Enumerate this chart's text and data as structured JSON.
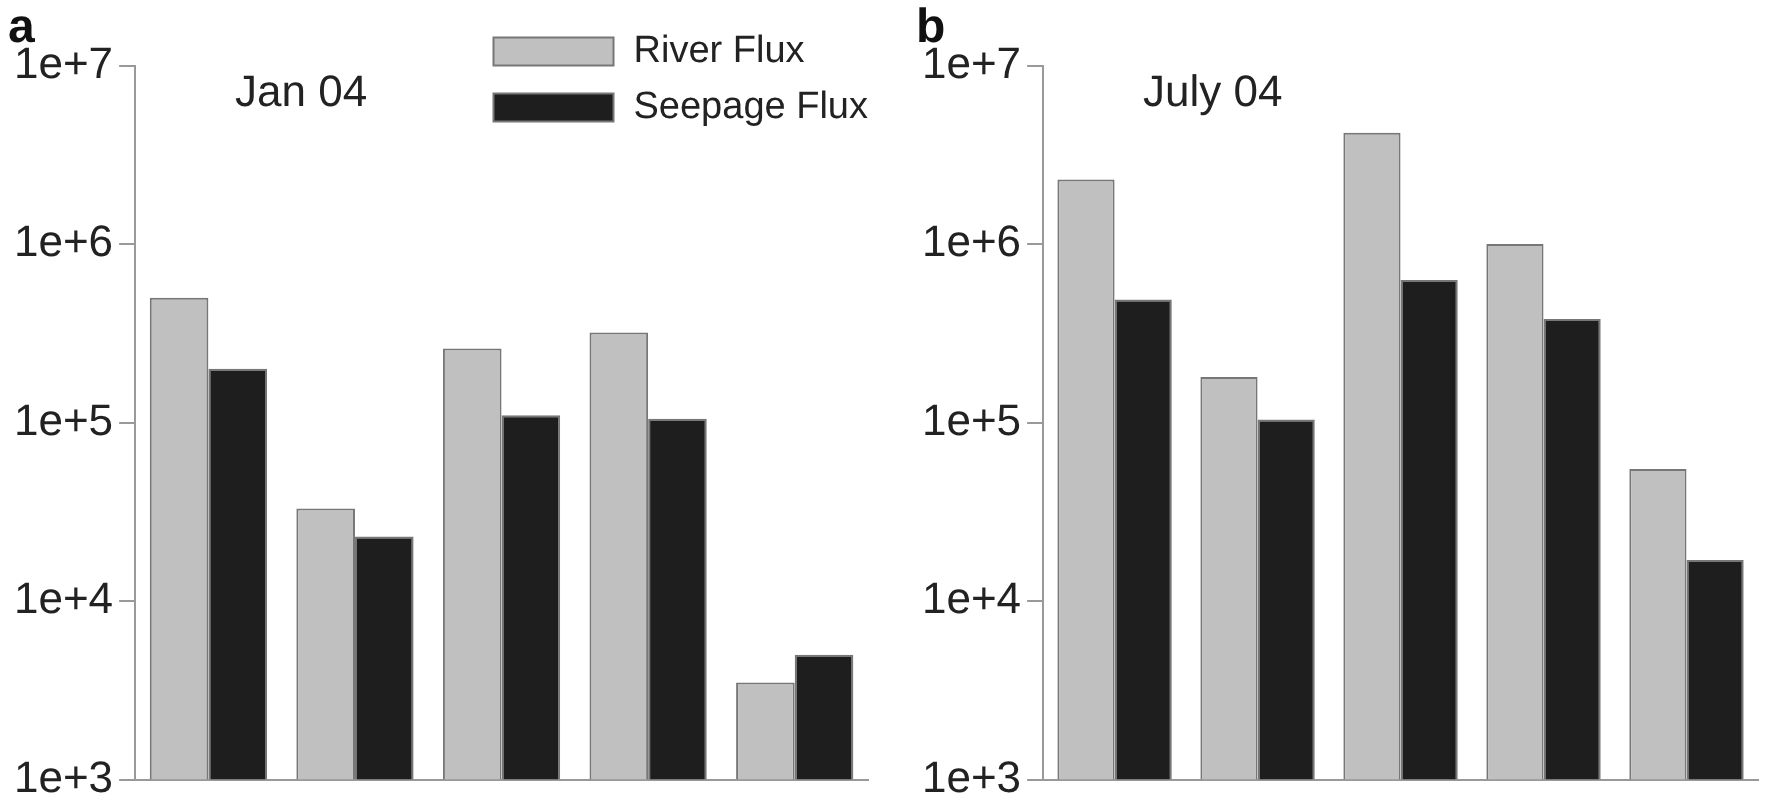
{
  "chart_data": [
    {
      "type": "bar",
      "title": "a",
      "annotations": [
        "Jan 04"
      ],
      "categories": [
        null,
        null,
        null,
        null,
        null
      ],
      "log": "y",
      "ylim": [
        1000,
        10000000
      ],
      "yticks": [
        {
          "value": 1000,
          "label": "1e+3"
        },
        {
          "value": 10000,
          "label": "1e+4"
        },
        {
          "value": 100000,
          "label": "1e+5"
        },
        {
          "value": 1000000,
          "label": "1e+6"
        },
        {
          "value": 10000000,
          "label": "1e+7"
        }
      ],
      "tick_labels": "y",
      "legend": "top right",
      "grid": false,
      "series": [
        {
          "name": "River Flux",
          "color": "#c0c0c0",
          "values": [
            500000,
            33000,
            260000,
            320000,
            3500
          ]
        },
        {
          "name": "Seepage Flux",
          "color": "#1e1e1e",
          "values": [
            200000,
            23000,
            110000,
            105000,
            5000
          ]
        }
      ]
    },
    {
      "type": "bar",
      "title": "b",
      "annotations": [
        "July 04"
      ],
      "categories": [
        null,
        null,
        null,
        null,
        null
      ],
      "log": "y",
      "ylim": [
        1000,
        10000000
      ],
      "yticks": [
        {
          "value": 1000,
          "label": "1e+3"
        },
        {
          "value": 10000,
          "label": "1e+4"
        },
        {
          "value": 100000,
          "label": "1e+5"
        },
        {
          "value": 1000000,
          "label": "1e+6"
        },
        {
          "value": 10000000,
          "label": "1e+7"
        }
      ],
      "tick_labels": "y",
      "legend": false,
      "grid": false,
      "series": [
        {
          "color": "#c0c0c0",
          "values": [
            2300000,
            180000,
            4200000,
            1000000,
            55000
          ]
        },
        {
          "color": "#1e1e1e",
          "values": [
            490000,
            104000,
            630000,
            380000,
            17000
          ]
        }
      ]
    }
  ]
}
